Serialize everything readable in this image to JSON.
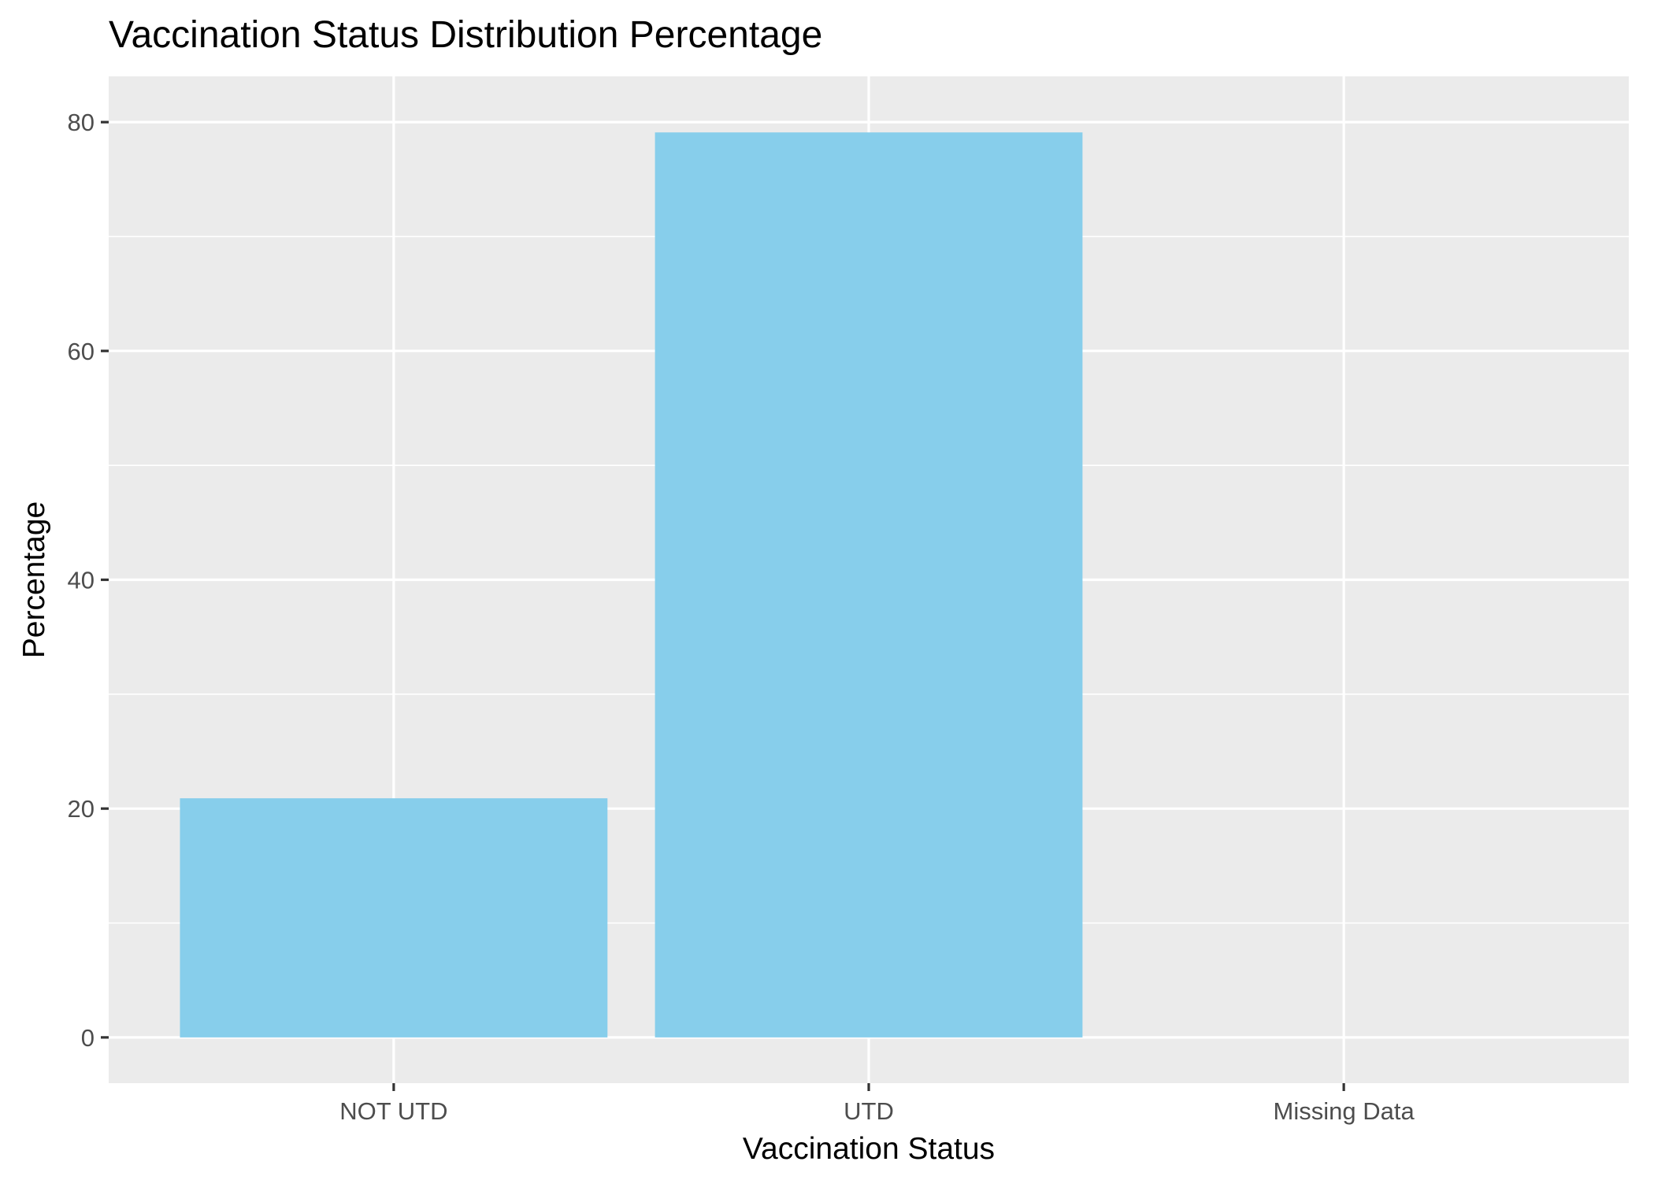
{
  "chart_data": {
    "type": "bar",
    "title": "Vaccination Status Distribution Percentage",
    "xlabel": "Vaccination Status",
    "ylabel": "Percentage",
    "categories": [
      "NOT UTD",
      "UTD",
      "Missing Data"
    ],
    "values": [
      20.9,
      79.1,
      0
    ],
    "ylim": [
      -4,
      84
    ],
    "yticks": [
      0,
      20,
      40,
      60,
      80
    ],
    "ytick_labels": [
      "0",
      "20",
      "40",
      "60",
      "80"
    ],
    "yminor": [
      10,
      30,
      50,
      70
    ],
    "grid": true,
    "legend": "none",
    "colors": {
      "bar": "#87CEEB",
      "panel": "#EBEBEB",
      "grid": "#FFFFFF",
      "tick": "#333333"
    }
  }
}
